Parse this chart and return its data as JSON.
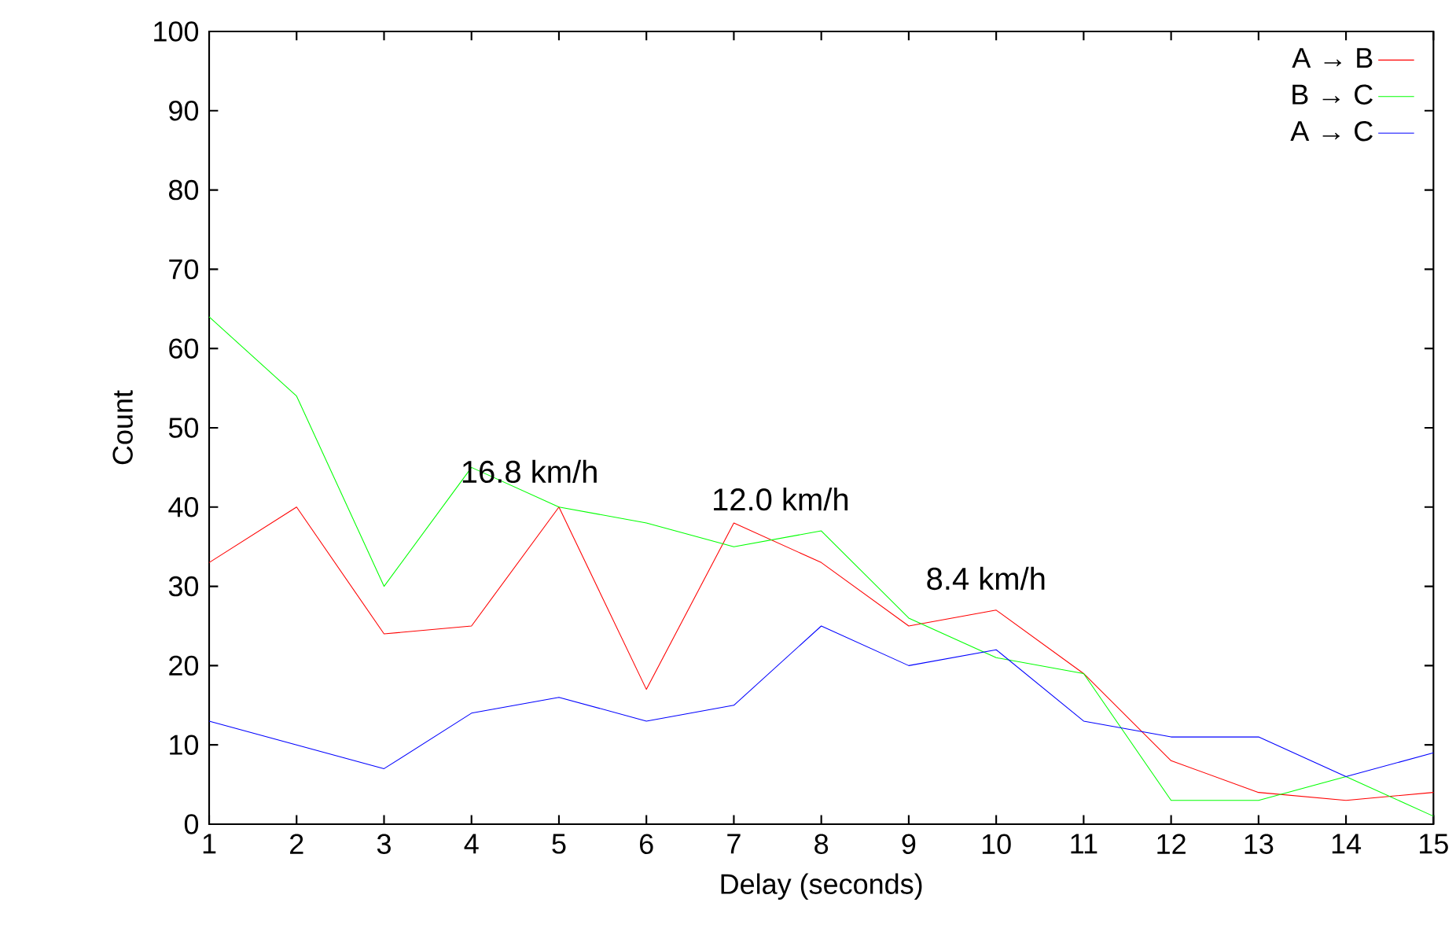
{
  "chart_data": {
    "type": "line",
    "xlabel": "Delay (seconds)",
    "ylabel": "Count",
    "x": [
      1,
      2,
      3,
      4,
      5,
      6,
      7,
      8,
      9,
      10,
      11,
      12,
      13,
      14,
      15
    ],
    "series": [
      {
        "name": "A → B",
        "color": "#ff0000",
        "values": [
          33,
          40,
          24,
          25,
          40,
          17,
          38,
          33,
          25,
          27,
          19,
          8,
          4,
          3,
          4
        ]
      },
      {
        "name": "B → C",
        "color": "#00ff00",
        "values": [
          64,
          54,
          30,
          45,
          40,
          38,
          35,
          37,
          26,
          21,
          19,
          3,
          3,
          6,
          1
        ]
      },
      {
        "name": "A → C",
        "color": "#0000ff",
        "values": [
          13,
          10,
          7,
          14,
          16,
          13,
          15,
          25,
          20,
          22,
          13,
          11,
          11,
          6,
          9
        ]
      }
    ],
    "annotations": [
      "16.8 km/h",
      "12.0 km/h",
      "8.4 km/h"
    ],
    "xlim": [
      1,
      15
    ],
    "xticks": [
      1,
      2,
      3,
      4,
      5,
      6,
      7,
      8,
      9,
      10,
      11,
      12,
      13,
      14,
      15
    ],
    "ylim": [
      0,
      100
    ],
    "yticks": [
      0,
      10,
      20,
      30,
      40,
      50,
      60,
      70,
      80,
      90,
      100
    ],
    "grid": false,
    "legend": "top right",
    "marker": "none",
    "line_style": "solid"
  }
}
